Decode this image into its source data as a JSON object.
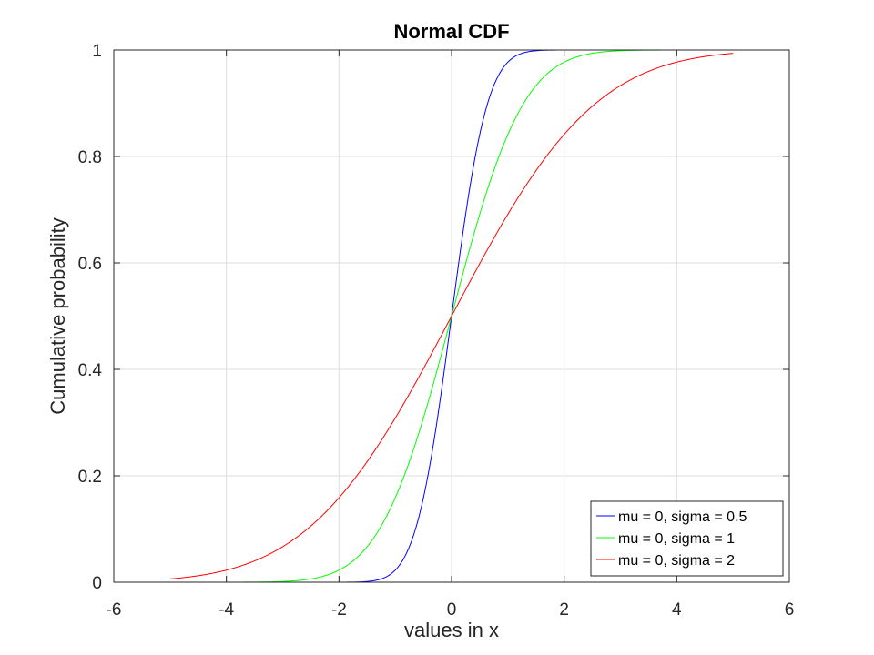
{
  "chart_data": {
    "type": "line",
    "title": "Normal CDF",
    "xlabel": "values in x",
    "ylabel": "Cumulative probability",
    "xlim": [
      -6,
      6
    ],
    "ylim": [
      0,
      1
    ],
    "xticks": [
      "-6",
      "-4",
      "-2",
      "0",
      "2",
      "4",
      "6"
    ],
    "yticks": [
      "0",
      "0.2",
      "0.4",
      "0.6",
      "0.8",
      "1"
    ],
    "grid": true,
    "legend_position": "bottom-right",
    "series": [
      {
        "name": "mu = 0, sigma = 0.5",
        "color": "#0000ff",
        "mu": 0,
        "sigma": 0.5,
        "x_range": [
          -3,
          3
        ],
        "x": [
          -3,
          -2,
          -1.5,
          -1,
          -0.5,
          0,
          0.5,
          1,
          1.5,
          2,
          3
        ],
        "y": [
          0,
          3e-05,
          0.0013,
          0.0228,
          0.1587,
          0.5,
          0.8413,
          0.9772,
          0.9987,
          0.99997,
          1
        ]
      },
      {
        "name": "mu = 0, sigma = 1",
        "color": "#00ff00",
        "mu": 0,
        "sigma": 1,
        "x_range": [
          -4,
          4
        ],
        "x": [
          -4,
          -3,
          -2,
          -1,
          0,
          1,
          2,
          3,
          4
        ],
        "y": [
          3e-05,
          0.0013,
          0.0228,
          0.1587,
          0.5,
          0.8413,
          0.9772,
          0.9987,
          0.99997
        ]
      },
      {
        "name": "mu = 0, sigma = 2",
        "color": "#ff0000",
        "mu": 0,
        "sigma": 2,
        "x_range": [
          -5,
          5
        ],
        "x": [
          -5,
          -4,
          -3,
          -2,
          -1,
          0,
          1,
          2,
          3,
          4,
          5
        ],
        "y": [
          0.0062,
          0.0228,
          0.0668,
          0.1587,
          0.3085,
          0.5,
          0.6915,
          0.8413,
          0.9332,
          0.9772,
          0.9938
        ]
      }
    ]
  }
}
